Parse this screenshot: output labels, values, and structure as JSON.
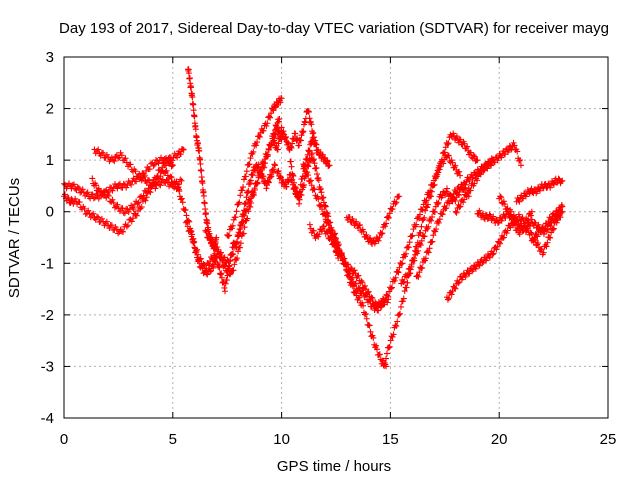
{
  "chart_data": {
    "type": "scatter",
    "title": "Day 193 of 2017, Sidereal Day-to-day VTEC variation (SDTVAR) for receiver mayg",
    "xlabel": "GPS time / hours",
    "ylabel": "SDTVAR / TECUs",
    "xlim": [
      0,
      25
    ],
    "ylim": [
      -4,
      3
    ],
    "xticks": [
      "0",
      "5",
      "10",
      "15",
      "20",
      "25"
    ],
    "yticks": [
      "-4",
      "-3",
      "-2",
      "-1",
      "0",
      "1",
      "2",
      "3"
    ],
    "grid": true,
    "marker": "+",
    "color": "#ff0000",
    "series": [
      {
        "x": [
          0.0,
          0.3,
          0.6,
          1.0,
          1.4,
          1.8,
          2.2,
          2.6,
          3.0,
          3.4,
          3.8,
          4.2,
          4.6,
          5.0,
          5.3
        ],
        "y": [
          0.3,
          0.2,
          0.2,
          0.0,
          -0.1,
          -0.2,
          -0.3,
          -0.4,
          -0.2,
          0.0,
          0.3,
          0.6,
          0.8,
          0.6,
          0.4
        ]
      },
      {
        "x": [
          0.0,
          0.4,
          0.8,
          1.2,
          1.6,
          2.0,
          2.4,
          2.8,
          3.2,
          3.6,
          4.0,
          4.4,
          4.8,
          5.2,
          5.5
        ],
        "y": [
          0.5,
          0.5,
          0.4,
          0.3,
          0.3,
          0.4,
          0.5,
          0.5,
          0.6,
          0.7,
          0.9,
          1.0,
          1.0,
          1.1,
          1.2
        ]
      },
      {
        "x": [
          1.3,
          1.6,
          2.0,
          2.4,
          2.8,
          3.2,
          3.6,
          4.0,
          4.4,
          4.8,
          5.0
        ],
        "y": [
          0.6,
          0.4,
          0.3,
          0.1,
          0.0,
          0.1,
          0.3,
          0.5,
          0.8,
          1.0,
          0.9
        ]
      },
      {
        "x": [
          1.4,
          1.8,
          2.2,
          2.6,
          3.0,
          3.4,
          3.8,
          4.2,
          4.6,
          5.0,
          5.4
        ],
        "y": [
          1.2,
          1.1,
          1.0,
          1.1,
          0.9,
          0.7,
          0.6,
          0.5,
          0.6,
          0.5,
          0.6
        ]
      },
      {
        "x": [
          5.7,
          5.8,
          5.9,
          6.0,
          6.1,
          6.2,
          6.3,
          6.4,
          6.5,
          6.6,
          6.7,
          6.8,
          6.9,
          7.0
        ],
        "y": [
          2.8,
          2.5,
          2.2,
          1.8,
          1.4,
          1.2,
          0.8,
          0.4,
          0.0,
          -0.3,
          -0.5,
          -0.6,
          -0.7,
          -0.5
        ]
      },
      {
        "x": [
          5.2,
          5.5,
          5.8,
          6.0,
          6.2,
          6.5,
          6.8,
          7.0,
          7.2,
          7.4,
          7.6,
          7.8
        ],
        "y": [
          0.5,
          0.1,
          -0.3,
          -0.7,
          -1.0,
          -1.2,
          -1.1,
          -0.9,
          -1.2,
          -1.5,
          -1.0,
          -0.6
        ]
      },
      {
        "x": [
          5.6,
          5.9,
          6.2,
          6.5,
          6.8,
          7.1,
          7.4,
          7.7,
          8.0,
          8.3,
          8.6,
          8.9,
          9.2,
          9.5,
          9.8,
          10.0
        ],
        "y": [
          -0.2,
          -0.5,
          -0.9,
          -1.1,
          -0.9,
          -0.8,
          -1.1,
          -1.2,
          -0.8,
          -0.3,
          0.2,
          0.6,
          0.9,
          1.3,
          1.6,
          1.4
        ]
      },
      {
        "x": [
          6.5,
          6.8,
          7.0,
          7.3,
          7.6,
          7.9,
          8.2,
          8.5,
          8.8,
          9.1,
          9.4,
          9.7,
          9.9
        ],
        "y": [
          -0.4,
          -0.6,
          -0.7,
          -0.9,
          -1.0,
          -0.6,
          -0.2,
          0.2,
          0.5,
          0.9,
          1.2,
          1.6,
          1.8
        ]
      },
      {
        "x": [
          7.5,
          7.8,
          8.1,
          8.4,
          8.7,
          9.0,
          9.3,
          9.6,
          9.8,
          10.0
        ],
        "y": [
          -0.5,
          -0.2,
          0.3,
          0.8,
          1.2,
          1.5,
          1.7,
          2.0,
          2.1,
          2.2
        ]
      },
      {
        "x": [
          7.9,
          8.1,
          8.3,
          8.5,
          8.7,
          8.9,
          9.1,
          9.3,
          9.5,
          9.7
        ],
        "y": [
          -0.7,
          -0.3,
          0.1,
          0.5,
          0.8,
          0.9,
          0.7,
          0.5,
          0.7,
          0.9
        ]
      },
      {
        "x": [
          9.6,
          9.8,
          10.0,
          10.2,
          10.4,
          10.6,
          10.8,
          11.0,
          11.2,
          11.4,
          11.6,
          11.8,
          12.0,
          12.2
        ],
        "y": [
          1.4,
          1.2,
          1.6,
          1.4,
          1.2,
          1.5,
          1.3,
          1.6,
          2.0,
          1.6,
          1.2,
          1.1,
          1.0,
          0.9
        ]
      },
      {
        "x": [
          9.8,
          10.0,
          10.2,
          10.4,
          10.6,
          10.8,
          11.0,
          11.2,
          11.4,
          11.6
        ],
        "y": [
          0.8,
          0.6,
          0.5,
          0.7,
          0.4,
          0.3,
          0.8,
          1.1,
          1.4,
          1.3
        ]
      },
      {
        "x": [
          10.4,
          10.6,
          10.8,
          11.0,
          11.2,
          11.4,
          11.6,
          11.8,
          12.0,
          12.2,
          12.4,
          12.6
        ],
        "y": [
          1.0,
          0.5,
          0.2,
          0.5,
          0.9,
          1.1,
          0.8,
          0.4,
          0.1,
          -0.2,
          -0.6,
          -0.9
        ]
      },
      {
        "x": [
          11.0,
          11.3,
          11.6,
          11.9,
          12.2,
          12.5,
          12.8,
          13.1,
          13.4,
          13.7,
          14.0,
          14.3,
          14.6,
          14.8
        ],
        "y": [
          0.9,
          0.6,
          0.3,
          0.0,
          -0.3,
          -0.5,
          -0.9,
          -1.3,
          -1.6,
          -1.8,
          -2.2,
          -2.6,
          -2.9,
          -3.0
        ]
      },
      {
        "x": [
          11.3,
          11.6,
          11.9,
          12.2,
          12.5,
          12.8,
          13.1,
          13.4,
          13.7,
          14.0,
          14.3,
          14.6,
          14.9
        ],
        "y": [
          -0.3,
          -0.5,
          -0.3,
          -0.5,
          -0.7,
          -0.9,
          -1.1,
          -1.2,
          -1.4,
          -1.6,
          -1.8,
          -1.8,
          -1.7
        ]
      },
      {
        "x": [
          12.0,
          12.3,
          12.6,
          12.9,
          13.2,
          13.5,
          13.8,
          14.1,
          14.4,
          14.7
        ],
        "y": [
          -0.1,
          -0.4,
          -0.7,
          -1.0,
          -1.3,
          -1.5,
          -1.6,
          -1.8,
          -1.9,
          -1.7
        ]
      },
      {
        "x": [
          13.0,
          13.3,
          13.6,
          13.9,
          14.2,
          14.5,
          14.8,
          15.1,
          15.4
        ],
        "y": [
          -0.1,
          -0.2,
          -0.3,
          -0.5,
          -0.6,
          -0.5,
          -0.2,
          0.1,
          0.3
        ]
      },
      {
        "x": [
          14.8,
          15.1,
          15.4,
          15.7,
          16.0,
          16.3,
          16.6,
          16.9,
          17.2,
          17.5,
          17.8,
          18.1,
          18.4,
          18.7,
          19.0
        ],
        "y": [
          -2.8,
          -2.4,
          -2.0,
          -1.5,
          -1.0,
          -0.5,
          0.0,
          0.4,
          0.8,
          1.2,
          1.5,
          1.4,
          1.3,
          1.1,
          1.0
        ]
      },
      {
        "x": [
          14.6,
          14.9,
          15.2,
          15.5,
          15.8,
          16.1,
          16.4,
          16.7,
          17.0,
          17.3,
          17.6,
          17.9,
          18.2
        ],
        "y": [
          -1.8,
          -1.6,
          -1.3,
          -1.0,
          -0.7,
          -0.3,
          0.0,
          0.3,
          0.6,
          0.9,
          1.1,
          0.9,
          0.7
        ]
      },
      {
        "x": [
          15.5,
          15.8,
          16.1,
          16.4,
          16.7,
          17.0,
          17.3,
          17.6,
          17.9,
          18.2,
          18.5,
          18.8,
          19.1,
          19.4,
          19.7
        ],
        "y": [
          -1.4,
          -1.2,
          -0.9,
          -0.6,
          -0.3,
          0.0,
          0.3,
          0.4,
          0.2,
          0.4,
          0.6,
          0.7,
          0.8,
          0.9,
          1.0
        ]
      },
      {
        "x": [
          16.2,
          16.5,
          16.8,
          17.1,
          17.4,
          17.7,
          18.0,
          18.3,
          18.6
        ],
        "y": [
          -1.3,
          -1.0,
          -0.7,
          -0.3,
          0.0,
          0.2,
          0.4,
          0.5,
          0.3
        ]
      },
      {
        "x": [
          17.6,
          17.9,
          18.2,
          18.5,
          18.8,
          19.1,
          19.4,
          19.7,
          20.0,
          20.3,
          20.6,
          20.9,
          21.2,
          21.5
        ],
        "y": [
          -1.7,
          -1.5,
          -1.3,
          -1.2,
          -1.1,
          -1.0,
          -0.9,
          -0.8,
          -0.6,
          -0.4,
          -0.2,
          -0.1,
          -0.2,
          0.0
        ]
      },
      {
        "x": [
          18.0,
          18.3,
          18.6,
          18.9,
          19.2,
          19.5,
          19.8,
          20.1,
          20.4,
          20.7,
          21.0
        ],
        "y": [
          0.0,
          0.2,
          0.4,
          0.6,
          0.8,
          0.9,
          1.0,
          1.1,
          1.2,
          1.3,
          0.9
        ]
      },
      {
        "x": [
          19.0,
          19.3,
          19.6,
          19.9,
          20.2,
          20.5,
          20.8,
          21.1,
          21.4,
          21.7,
          22.0,
          22.3,
          22.6,
          22.9
        ],
        "y": [
          0.0,
          -0.1,
          -0.1,
          -0.2,
          -0.1,
          0.0,
          -0.2,
          -0.3,
          -0.4,
          -0.6,
          -0.8,
          -0.5,
          -0.2,
          0.0
        ]
      },
      {
        "x": [
          20.0,
          20.3,
          20.6,
          20.9,
          21.2,
          21.5,
          21.8,
          22.1,
          22.4,
          22.7
        ],
        "y": [
          0.3,
          0.1,
          -0.2,
          -0.4,
          -0.3,
          -0.2,
          -0.3,
          -0.4,
          -0.2,
          -0.1
        ]
      },
      {
        "x": [
          20.8,
          21.1,
          21.4,
          21.7,
          22.0,
          22.3,
          22.6,
          22.9
        ],
        "y": [
          0.2,
          0.3,
          0.4,
          0.4,
          0.5,
          0.5,
          0.6,
          0.6
        ]
      },
      {
        "x": [
          21.5,
          21.8,
          22.1,
          22.4,
          22.7,
          22.9
        ],
        "y": [
          -0.6,
          -0.4,
          -0.3,
          -0.1,
          0.0,
          0.1
        ]
      }
    ]
  }
}
